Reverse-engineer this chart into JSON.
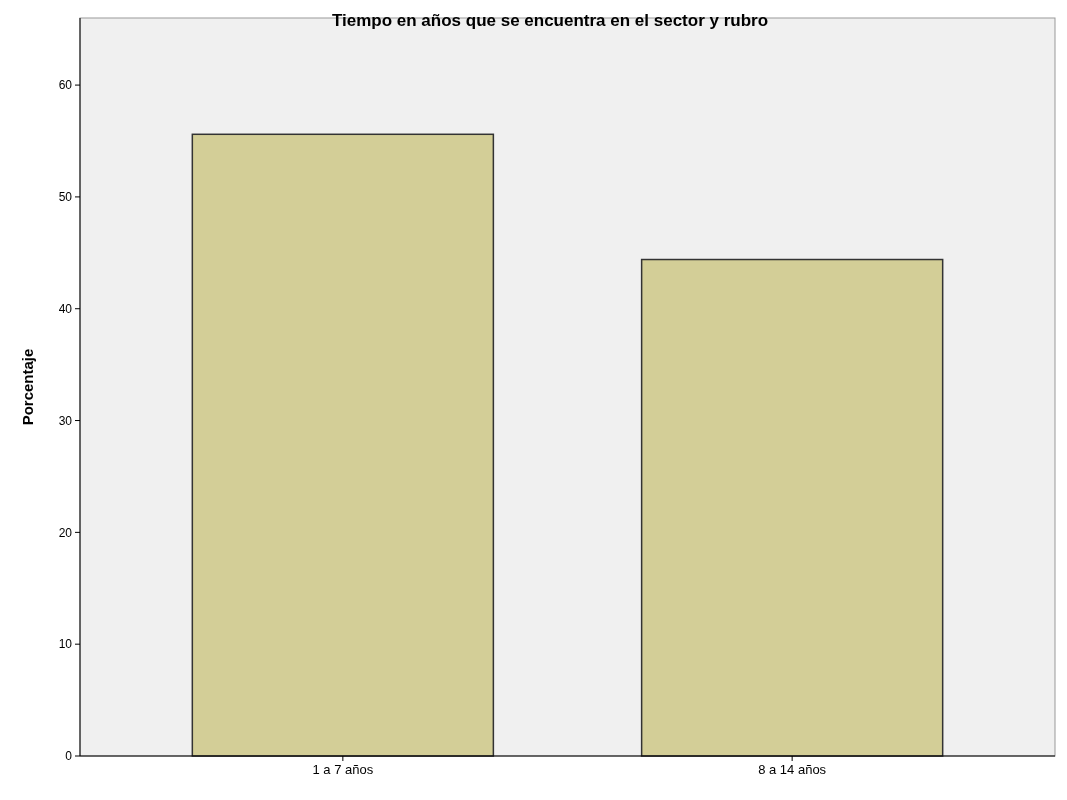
{
  "chart_data": {
    "type": "bar",
    "title": "Tiempo en años que se encuentra en el sector y rubro",
    "ylabel": "Porcentaje",
    "categories": [
      "1 a 7 años",
      "8 a 14 años"
    ],
    "values": [
      55.6,
      44.4
    ],
    "color": "#d3ce97",
    "ylim": [
      0,
      66
    ],
    "yticks": [
      0,
      10,
      20,
      30,
      40,
      50,
      60
    ],
    "grid": false
  }
}
